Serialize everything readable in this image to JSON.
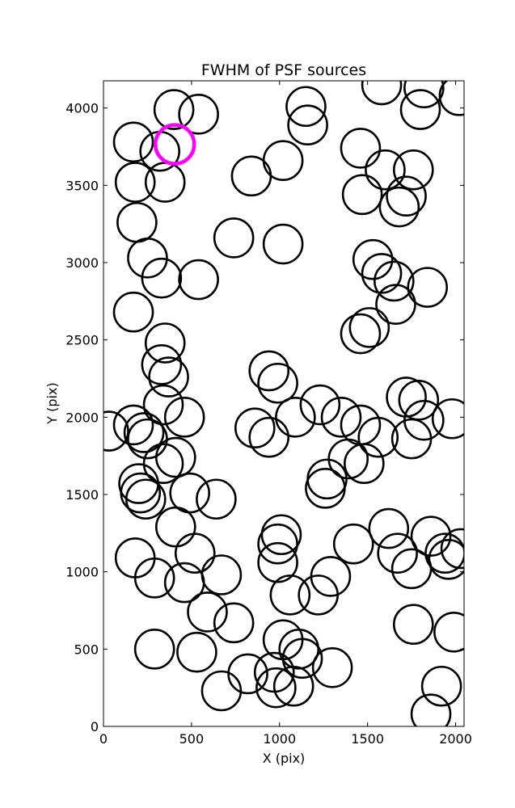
{
  "chart_data": {
    "type": "scatter",
    "title": "FWHM of PSF sources",
    "xlabel": "X (pix)",
    "ylabel": "Y (pix)",
    "xlim": [
      0,
      2048
    ],
    "ylim": [
      0,
      4176
    ],
    "xticks": [
      0,
      500,
      1000,
      1500,
      2000
    ],
    "yticks": [
      0,
      500,
      1000,
      1500,
      2000,
      2500,
      3000,
      3500,
      4000
    ],
    "grid": false,
    "marker": "open circle",
    "marker_color": "#000000",
    "highlight_color": "#ff00ff",
    "series": [
      {
        "points": [
          [
            400,
            3990
          ],
          [
            540,
            3960
          ],
          [
            1150,
            4010
          ],
          [
            1160,
            3890
          ],
          [
            1580,
            4150
          ],
          [
            1820,
            4130
          ],
          [
            2020,
            4080
          ],
          [
            1800,
            3990
          ],
          [
            170,
            3780
          ],
          [
            320,
            3720
          ],
          [
            1020,
            3660
          ],
          [
            840,
            3560
          ],
          [
            1460,
            3740
          ],
          [
            1600,
            3600
          ],
          [
            1760,
            3600
          ],
          [
            1720,
            3430
          ],
          [
            1680,
            3360
          ],
          [
            180,
            3520
          ],
          [
            350,
            3520
          ],
          [
            1470,
            3440
          ],
          [
            190,
            3260
          ],
          [
            740,
            3160
          ],
          [
            1020,
            3120
          ],
          [
            250,
            3030
          ],
          [
            330,
            2900
          ],
          [
            540,
            2890
          ],
          [
            1530,
            3020
          ],
          [
            1580,
            2930
          ],
          [
            1650,
            2880
          ],
          [
            1840,
            2840
          ],
          [
            1660,
            2730
          ],
          [
            170,
            2680
          ],
          [
            350,
            2480
          ],
          [
            1460,
            2540
          ],
          [
            1510,
            2580
          ],
          [
            330,
            2340
          ],
          [
            370,
            2260
          ],
          [
            940,
            2300
          ],
          [
            990,
            2220
          ],
          [
            340,
            2080
          ],
          [
            460,
            2000
          ],
          [
            170,
            1950
          ],
          [
            230,
            1900
          ],
          [
            250,
            1860
          ],
          [
            1090,
            2000
          ],
          [
            1230,
            2080
          ],
          [
            1350,
            2000
          ],
          [
            30,
            1910
          ],
          [
            860,
            1930
          ],
          [
            940,
            1870
          ],
          [
            1460,
            1950
          ],
          [
            1560,
            1870
          ],
          [
            1720,
            2130
          ],
          [
            1790,
            2110
          ],
          [
            1820,
            1980
          ],
          [
            1750,
            1860
          ],
          [
            1980,
            1990
          ],
          [
            340,
            1700
          ],
          [
            410,
            1740
          ],
          [
            1390,
            1730
          ],
          [
            1480,
            1700
          ],
          [
            1270,
            1600
          ],
          [
            1260,
            1540
          ],
          [
            200,
            1570
          ],
          [
            210,
            1510
          ],
          [
            240,
            1470
          ],
          [
            490,
            1510
          ],
          [
            640,
            1470
          ],
          [
            410,
            1290
          ],
          [
            1010,
            1240
          ],
          [
            990,
            1180
          ],
          [
            1420,
            1180
          ],
          [
            1620,
            1280
          ],
          [
            1670,
            1120
          ],
          [
            1750,
            1020
          ],
          [
            1860,
            1230
          ],
          [
            1940,
            1120
          ],
          [
            1960,
            1080
          ],
          [
            2030,
            1150
          ],
          [
            180,
            1090
          ],
          [
            290,
            960
          ],
          [
            520,
            1120
          ],
          [
            460,
            930
          ],
          [
            670,
            980
          ],
          [
            990,
            1060
          ],
          [
            1060,
            850
          ],
          [
            1220,
            850
          ],
          [
            1290,
            970
          ],
          [
            590,
            740
          ],
          [
            740,
            670
          ],
          [
            1760,
            660
          ],
          [
            1990,
            610
          ],
          [
            290,
            500
          ],
          [
            530,
            480
          ],
          [
            1020,
            560
          ],
          [
            1110,
            500
          ],
          [
            1130,
            440
          ],
          [
            820,
            340
          ],
          [
            970,
            350
          ],
          [
            980,
            250
          ],
          [
            1080,
            260
          ],
          [
            1300,
            380
          ],
          [
            670,
            230
          ],
          [
            1920,
            260
          ],
          [
            1860,
            80
          ]
        ]
      },
      {
        "highlighted": true,
        "points": [
          [
            405,
            3765
          ]
        ]
      }
    ]
  }
}
